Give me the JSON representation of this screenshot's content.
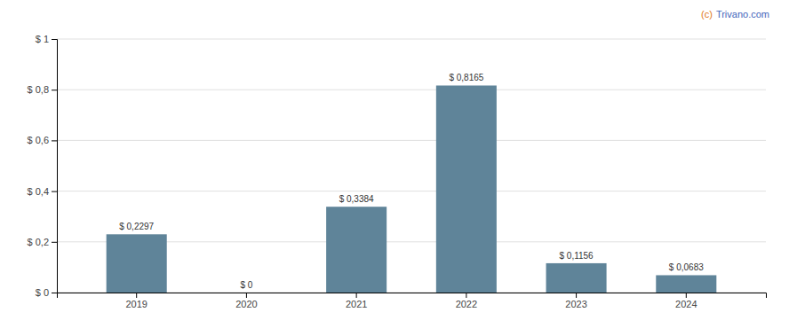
{
  "chart_data": {
    "type": "bar",
    "categories": [
      "2019",
      "2020",
      "2021",
      "2022",
      "2023",
      "2024"
    ],
    "values": [
      0.2297,
      0.0,
      0.3384,
      0.8165,
      0.1156,
      0.0683
    ],
    "value_labels": [
      "$ 0,2297",
      "$ 0",
      "$ 0,3384",
      "$ 0,8165",
      "$ 0,1156",
      "$ 0,0683"
    ],
    "color": "#5f8499",
    "ylim": [
      0,
      1.0
    ],
    "yticks": [
      {
        "value": 0.0,
        "label": "$ 0"
      },
      {
        "value": 0.2,
        "label": "$ 0,2"
      },
      {
        "value": 0.4,
        "label": "$ 0,4"
      },
      {
        "value": 0.6,
        "label": "$ 0,6"
      },
      {
        "value": 0.8,
        "label": "$ 0,8"
      },
      {
        "value": 1.0,
        "label": "$ 1"
      }
    ],
    "grid": true,
    "data_labels": true,
    "annotations": [
      {
        "text": "(c)",
        "color": "#e07820"
      },
      {
        "text": "Trivano.com",
        "color": "#4466bb"
      }
    ]
  }
}
